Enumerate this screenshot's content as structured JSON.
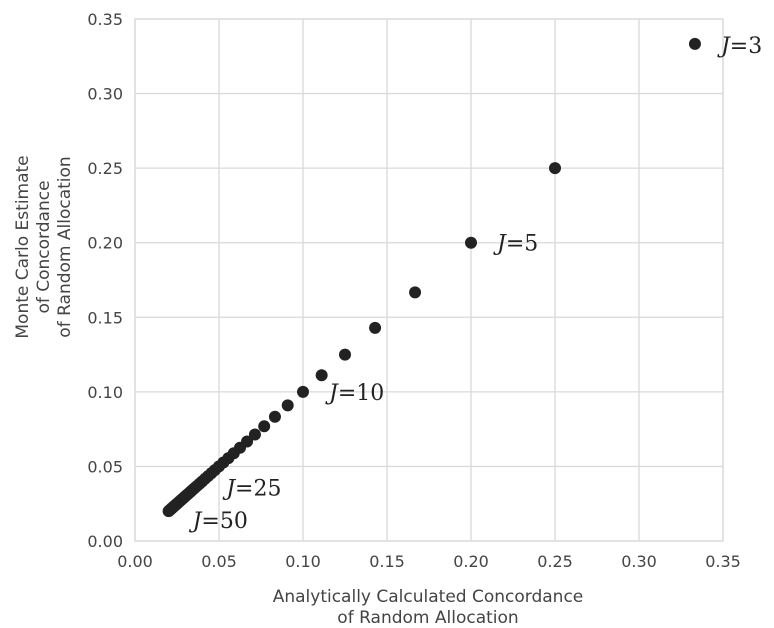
{
  "chart_data": {
    "type": "scatter",
    "xlabel": [
      "Analytically Calculated Concordance",
      "of Random Allocation"
    ],
    "ylabel": [
      "Monte Carlo Estimate",
      "of Concordance",
      "of Random Allocation"
    ],
    "xlim": [
      0.0,
      0.35
    ],
    "ylim": [
      0.0,
      0.35
    ],
    "x_ticks": [
      "0.00",
      "0.05",
      "0.10",
      "0.15",
      "0.20",
      "0.25",
      "0.30",
      "0.35"
    ],
    "y_ticks": [
      "0.00",
      "0.05",
      "0.10",
      "0.15",
      "0.20",
      "0.25",
      "0.30",
      "0.35"
    ],
    "grid": true,
    "marker_color": "#222222",
    "grid_color": "#d9d9d9",
    "J_values": [
      3,
      4,
      5,
      6,
      7,
      8,
      9,
      10,
      11,
      12,
      13,
      14,
      15,
      16,
      17,
      18,
      19,
      20,
      21,
      22,
      23,
      24,
      25,
      26,
      27,
      28,
      29,
      30,
      31,
      32,
      33,
      34,
      35,
      36,
      37,
      38,
      39,
      40,
      41,
      42,
      43,
      44,
      45,
      46,
      47,
      48,
      49,
      50
    ],
    "x": [
      0.3333,
      0.25,
      0.2,
      0.1667,
      0.1429,
      0.125,
      0.1111,
      0.1,
      0.0909,
      0.0833,
      0.0769,
      0.0714,
      0.0667,
      0.0625,
      0.0588,
      0.0556,
      0.0526,
      0.05,
      0.0476,
      0.0455,
      0.0435,
      0.0417,
      0.04,
      0.0385,
      0.037,
      0.0357,
      0.0345,
      0.0333,
      0.0323,
      0.0312,
      0.0303,
      0.0294,
      0.0286,
      0.0278,
      0.027,
      0.0263,
      0.0256,
      0.025,
      0.0244,
      0.0238,
      0.0233,
      0.0227,
      0.0222,
      0.0217,
      0.0213,
      0.0208,
      0.0204,
      0.02
    ],
    "y": [
      0.3333,
      0.25,
      0.2,
      0.1667,
      0.1429,
      0.125,
      0.1111,
      0.1,
      0.0909,
      0.0833,
      0.0769,
      0.0714,
      0.0667,
      0.0625,
      0.0588,
      0.0556,
      0.0526,
      0.05,
      0.0476,
      0.0455,
      0.0435,
      0.0417,
      0.04,
      0.0385,
      0.037,
      0.0357,
      0.0345,
      0.0333,
      0.0323,
      0.0312,
      0.0303,
      0.0294,
      0.0286,
      0.0278,
      0.027,
      0.0263,
      0.0256,
      0.025,
      0.0244,
      0.0238,
      0.0233,
      0.0227,
      0.0222,
      0.0217,
      0.0213,
      0.0208,
      0.0204,
      0.02
    ],
    "annotations": [
      {
        "var": "J",
        "eq": "=3",
        "J": 3
      },
      {
        "var": "J",
        "eq": "=5",
        "J": 5
      },
      {
        "var": "J",
        "eq": "=10",
        "J": 10
      },
      {
        "var": "J",
        "eq": "=25",
        "J": 25
      },
      {
        "var": "J",
        "eq": "=50",
        "J": 50
      }
    ]
  }
}
